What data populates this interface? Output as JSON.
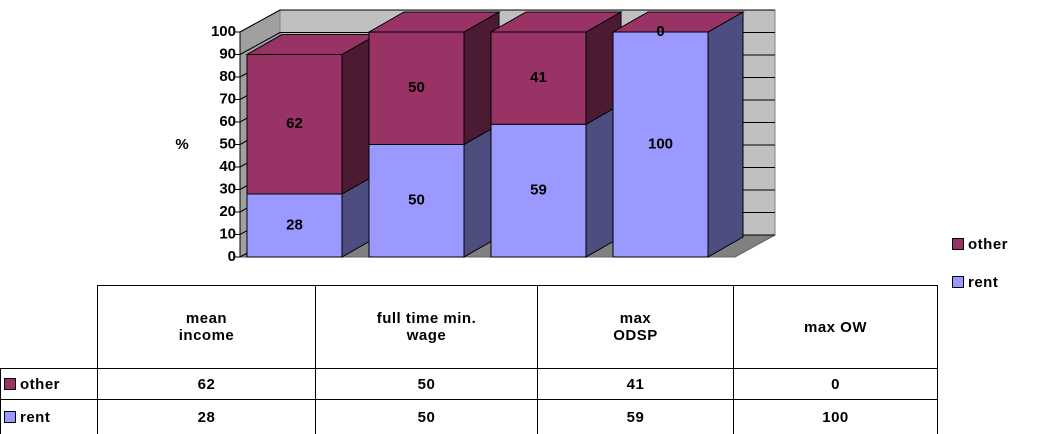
{
  "chart_data": {
    "type": "bar",
    "stacked": true,
    "y_label": "%",
    "categories": [
      "mean income",
      "full time min. wage",
      "max ODSP",
      "max OW"
    ],
    "series": [
      {
        "name": "other",
        "color": "#993366",
        "values": [
          62,
          50,
          41,
          0
        ]
      },
      {
        "name": "rent",
        "color": "#9999ff",
        "values": [
          28,
          50,
          59,
          100
        ]
      }
    ],
    "ylim": [
      0,
      100
    ],
    "yticks": [
      0,
      10,
      20,
      30,
      40,
      50,
      60,
      70,
      80,
      90,
      100
    ],
    "grid": true,
    "legend": "right",
    "data_table": true
  }
}
